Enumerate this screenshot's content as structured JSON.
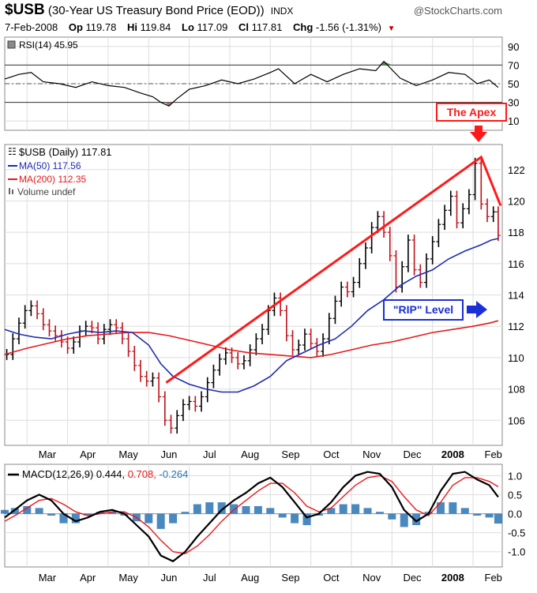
{
  "header": {
    "symbol": "$USB",
    "description": "(30-Year US Treasury Bond Price (EOD))",
    "exchange": "INDX",
    "brand": "@StockCharts.com",
    "date": "7-Feb-2008",
    "op_label": "Op",
    "op": "119.78",
    "hi_label": "Hi",
    "hi": "119.84",
    "lo_label": "Lo",
    "lo": "117.09",
    "cl_label": "Cl",
    "cl": "117.81",
    "chg_label": "Chg",
    "chg": "-1.56 (-1.31%)"
  },
  "colors": {
    "price": "#000000",
    "ma50": "#1c2bb0",
    "ma200": "#e8181a",
    "annotation": "#ff1a1a",
    "rip_box": "#1a2fd6",
    "hist": "#2a73b5",
    "grid": "#dddddd"
  },
  "rsi": {
    "legend": "RSI(14) 45.95",
    "ticks": [
      "90",
      "70",
      "50",
      "30",
      "10"
    ],
    "tick_values": [
      90,
      70,
      50,
      30,
      10
    ],
    "levels": [
      70,
      30
    ],
    "ylim": [
      0,
      100
    ]
  },
  "price": {
    "legend_main": "$USB (Daily) 117.81",
    "legend_ma50": "MA(50) 117.56",
    "legend_ma200": "MA(200) 112.35",
    "legend_volume": "Volume undef",
    "ticks": [
      "122",
      "120",
      "118",
      "116",
      "114",
      "112",
      "110",
      "108",
      "106"
    ],
    "tick_values": [
      122,
      120,
      118,
      116,
      114,
      112,
      110,
      108,
      106
    ],
    "ylim": [
      104.4,
      123.6
    ]
  },
  "macd": {
    "legend_main": "MACD(12,26,9) 0.444,",
    "legend_signal": "0.708,",
    "legend_hist": "-0.264",
    "ticks": [
      "1.0",
      "0.5",
      "0.0",
      "-0.5",
      "-1.0"
    ],
    "tick_values": [
      1.0,
      0.5,
      0.0,
      -0.5,
      -1.0
    ],
    "ylim": [
      -1.4,
      1.3
    ]
  },
  "x_axis": {
    "labels": [
      "Mar",
      "Apr",
      "May",
      "Jun",
      "Jul",
      "Aug",
      "Sep",
      "Oct",
      "Nov",
      "Dec",
      "2008",
      "Feb"
    ],
    "positions": [
      0.5,
      1.5,
      2.5,
      3.5,
      4.5,
      5.5,
      6.5,
      7.5,
      8.5,
      9.5,
      10.5,
      11.5
    ],
    "bold": [
      false,
      false,
      false,
      false,
      false,
      false,
      false,
      false,
      false,
      false,
      true,
      false
    ],
    "month_starts": [
      0,
      1,
      2,
      3,
      4,
      5,
      6,
      7,
      8,
      9,
      10,
      11
    ],
    "xlim": [
      -0.55,
      11.72
    ]
  },
  "annotations": {
    "apex_label": "The Apex",
    "rip_label": "\"RIP\" Level",
    "trend_line": [
      [
        3.43,
        108.4
      ],
      [
        11.2,
        122.8
      ],
      [
        11.68,
        119.7
      ]
    ]
  },
  "chart_data": {
    "type": "line",
    "title": "$USB (30-Year US Treasury Bond Price (EOD))",
    "x_unit": "months from 1-Mar-2007",
    "series": [
      {
        "name": "$USB (Daily)",
        "x": [
          -0.5,
          -0.35,
          -0.2,
          -0.05,
          0.1,
          0.25,
          0.4,
          0.55,
          0.7,
          0.85,
          1.0,
          1.15,
          1.3,
          1.45,
          1.6,
          1.75,
          1.9,
          2.05,
          2.2,
          2.35,
          2.5,
          2.65,
          2.8,
          2.95,
          3.1,
          3.25,
          3.4,
          3.55,
          3.7,
          3.85,
          4.0,
          4.15,
          4.3,
          4.45,
          4.6,
          4.75,
          4.9,
          5.05,
          5.2,
          5.35,
          5.5,
          5.65,
          5.8,
          5.95,
          6.1,
          6.25,
          6.4,
          6.55,
          6.7,
          6.85,
          7.0,
          7.15,
          7.3,
          7.45,
          7.6,
          7.75,
          7.9,
          8.05,
          8.2,
          8.35,
          8.5,
          8.65,
          8.8,
          8.95,
          9.1,
          9.25,
          9.4,
          9.55,
          9.7,
          9.85,
          10.0,
          10.15,
          10.3,
          10.45,
          10.6,
          10.75,
          10.9,
          11.05,
          11.2,
          11.35,
          11.5,
          11.62
        ],
        "values": [
          110.2,
          111.2,
          112.2,
          113.0,
          113.3,
          112.8,
          112.1,
          111.7,
          111.4,
          111.0,
          110.6,
          111.0,
          111.7,
          112.0,
          111.9,
          111.2,
          111.8,
          112.1,
          111.9,
          111.2,
          110.4,
          109.5,
          108.8,
          108.5,
          108.7,
          107.5,
          106.0,
          105.5,
          106.3,
          107.0,
          107.2,
          106.9,
          107.5,
          108.4,
          109.2,
          109.9,
          110.3,
          110.0,
          109.6,
          109.8,
          110.5,
          111.2,
          111.8,
          113.0,
          113.8,
          113.0,
          111.4,
          110.5,
          110.8,
          111.5,
          110.9,
          110.4,
          111.2,
          112.5,
          113.6,
          114.5,
          114.2,
          114.8,
          116.0,
          117.0,
          118.3,
          119.0,
          118.0,
          116.5,
          114.5,
          115.8,
          117.5,
          115.6,
          114.8,
          116.3,
          117.4,
          118.5,
          119.4,
          120.3,
          118.6,
          119.5,
          120.4,
          122.4,
          119.8,
          119.0,
          119.3,
          117.8
        ]
      },
      {
        "name": "MA(50)",
        "x": [
          -0.55,
          -0.2,
          0.2,
          0.6,
          1.0,
          1.4,
          1.8,
          2.2,
          2.6,
          3.0,
          3.3,
          3.6,
          4.0,
          4.4,
          4.8,
          5.2,
          5.6,
          6.0,
          6.4,
          6.8,
          7.2,
          7.6,
          8.0,
          8.4,
          8.8,
          9.2,
          9.6,
          10.0,
          10.4,
          10.8,
          11.2,
          11.45,
          11.62
        ],
        "values": [
          111.8,
          111.5,
          111.3,
          111.2,
          111.5,
          111.7,
          111.6,
          111.7,
          111.6,
          110.8,
          109.6,
          108.8,
          108.3,
          108.0,
          107.8,
          107.8,
          108.2,
          108.8,
          109.8,
          110.3,
          110.8,
          111.2,
          112.0,
          113.0,
          113.7,
          114.6,
          115.2,
          115.6,
          116.3,
          116.8,
          117.2,
          117.5,
          117.6
        ]
      },
      {
        "name": "MA(200)",
        "x": [
          -0.55,
          0.0,
          0.5,
          1.0,
          1.5,
          2.0,
          2.5,
          3.0,
          3.5,
          4.0,
          4.5,
          5.0,
          5.5,
          6.0,
          6.5,
          7.0,
          7.5,
          8.0,
          8.5,
          9.0,
          9.5,
          10.0,
          10.5,
          11.0,
          11.4,
          11.62
        ],
        "values": [
          110.2,
          110.6,
          110.9,
          111.2,
          111.4,
          111.5,
          111.6,
          111.6,
          111.4,
          111.1,
          110.8,
          110.5,
          110.3,
          110.2,
          110.1,
          110.0,
          110.2,
          110.5,
          110.8,
          111.0,
          111.3,
          111.6,
          111.8,
          112.0,
          112.2,
          112.35
        ]
      },
      {
        "name": "RSI(14)",
        "x": [
          -0.55,
          -0.2,
          0.1,
          0.4,
          0.8,
          1.2,
          1.6,
          2.0,
          2.4,
          2.8,
          3.1,
          3.3,
          3.5,
          3.7,
          4.0,
          4.4,
          4.8,
          5.2,
          5.6,
          6.0,
          6.2,
          6.6,
          7.0,
          7.4,
          7.8,
          8.2,
          8.6,
          8.8,
          9.2,
          9.6,
          10.0,
          10.4,
          10.8,
          11.1,
          11.4,
          11.62
        ],
        "values": [
          55,
          60,
          62,
          52,
          50,
          46,
          52,
          48,
          46,
          40,
          36,
          30,
          26,
          34,
          44,
          48,
          54,
          50,
          55,
          62,
          66,
          50,
          60,
          52,
          60,
          66,
          64,
          74,
          56,
          48,
          54,
          62,
          60,
          50,
          54,
          46
        ]
      },
      {
        "name": "MACD(12,26,9)",
        "x": [
          -0.55,
          -0.3,
          0.0,
          0.3,
          0.6,
          0.9,
          1.2,
          1.5,
          1.8,
          2.1,
          2.4,
          2.7,
          3.0,
          3.3,
          3.6,
          3.9,
          4.2,
          4.5,
          4.8,
          5.1,
          5.4,
          5.7,
          6.0,
          6.3,
          6.6,
          6.9,
          7.2,
          7.5,
          7.8,
          8.1,
          8.4,
          8.7,
          9.0,
          9.3,
          9.6,
          9.9,
          10.2,
          10.5,
          10.8,
          11.1,
          11.4,
          11.62
        ],
        "values": [
          -0.1,
          0.1,
          0.35,
          0.5,
          0.35,
          0.0,
          -0.2,
          -0.1,
          0.05,
          0.1,
          0.0,
          -0.3,
          -0.6,
          -1.1,
          -1.25,
          -1.0,
          -0.6,
          -0.25,
          0.1,
          0.35,
          0.55,
          0.8,
          0.95,
          0.7,
          0.3,
          -0.1,
          0.0,
          0.3,
          0.7,
          1.0,
          1.1,
          1.05,
          0.7,
          0.1,
          -0.2,
          0.0,
          0.6,
          1.05,
          1.1,
          0.9,
          0.75,
          0.44
        ]
      },
      {
        "name": "Signal",
        "x": [
          -0.55,
          -0.3,
          0.0,
          0.3,
          0.6,
          0.9,
          1.2,
          1.5,
          1.8,
          2.1,
          2.4,
          2.7,
          3.0,
          3.3,
          3.6,
          3.9,
          4.2,
          4.5,
          4.8,
          5.1,
          5.4,
          5.7,
          6.0,
          6.3,
          6.6,
          6.9,
          7.2,
          7.5,
          7.8,
          8.1,
          8.4,
          8.7,
          9.0,
          9.3,
          9.6,
          9.9,
          10.2,
          10.5,
          10.8,
          11.1,
          11.4,
          11.62
        ],
        "values": [
          -0.2,
          -0.05,
          0.15,
          0.35,
          0.4,
          0.25,
          0.05,
          -0.05,
          0.0,
          0.05,
          0.05,
          -0.1,
          -0.35,
          -0.7,
          -1.0,
          -1.05,
          -0.85,
          -0.55,
          -0.2,
          0.1,
          0.35,
          0.6,
          0.8,
          0.8,
          0.55,
          0.2,
          0.05,
          0.15,
          0.45,
          0.75,
          0.95,
          1.0,
          0.85,
          0.45,
          0.1,
          -0.05,
          0.3,
          0.75,
          0.95,
          0.95,
          0.85,
          0.71
        ]
      },
      {
        "name": "Histogram",
        "x": [
          -0.55,
          -0.3,
          0.0,
          0.3,
          0.6,
          0.9,
          1.2,
          1.5,
          1.8,
          2.1,
          2.4,
          2.7,
          3.0,
          3.3,
          3.6,
          3.9,
          4.2,
          4.5,
          4.8,
          5.1,
          5.4,
          5.7,
          6.0,
          6.3,
          6.6,
          6.9,
          7.2,
          7.5,
          7.8,
          8.1,
          8.4,
          8.7,
          9.0,
          9.3,
          9.6,
          9.9,
          10.2,
          10.5,
          10.8,
          11.1,
          11.4,
          11.62
        ],
        "values": [
          0.1,
          0.15,
          0.2,
          0.15,
          -0.05,
          -0.25,
          -0.25,
          -0.05,
          0.05,
          0.05,
          -0.05,
          -0.2,
          -0.25,
          -0.4,
          -0.25,
          0.05,
          0.25,
          0.3,
          0.3,
          0.25,
          0.2,
          0.2,
          0.15,
          -0.1,
          -0.25,
          -0.3,
          -0.05,
          0.15,
          0.25,
          0.25,
          0.15,
          0.05,
          -0.15,
          -0.35,
          -0.3,
          0.05,
          0.3,
          0.3,
          0.15,
          -0.05,
          -0.1,
          -0.26
        ]
      }
    ]
  }
}
